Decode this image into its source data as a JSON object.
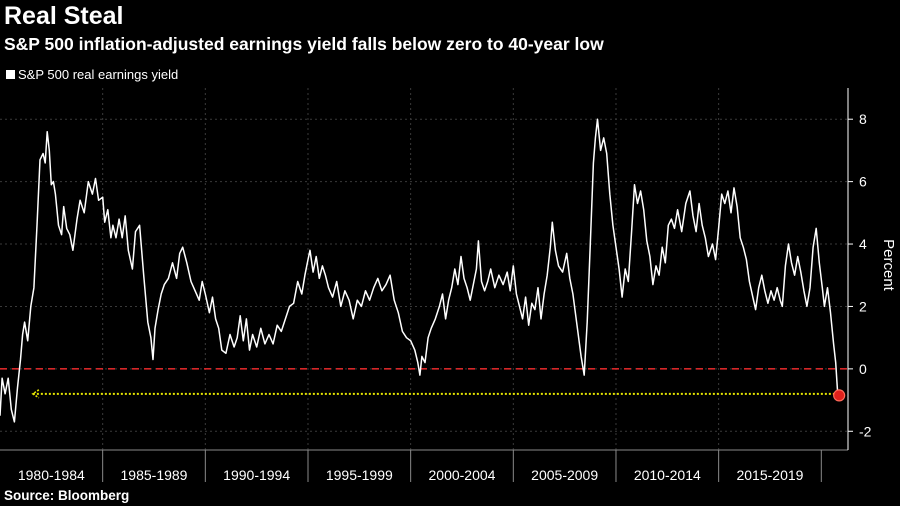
{
  "title": "Real Steal",
  "subtitle": "S&P 500 inflation-adjusted earnings yield falls below zero to 40-year low",
  "source": "Source: Bloomberg",
  "colors": {
    "background": "#000000",
    "line": "#ffffff",
    "zero_line": "#d62728",
    "reference_line": "#e6e600",
    "marker": "#e0201b"
  },
  "chart_data": {
    "type": "line",
    "legend": [
      "S&P 500 real earnings yield"
    ],
    "ylabel": "Percent",
    "ylim": [
      -2.6,
      9
    ],
    "yticks": [
      "-2",
      "0",
      "2",
      "4",
      "6",
      "8"
    ],
    "xlim": [
      1980,
      2021.3
    ],
    "x_categories": [
      "1980-1984",
      "1985-1989",
      "1990-1994",
      "1995-1999",
      "2000-2004",
      "2005-2009",
      "2010-2014",
      "2015-2019"
    ],
    "grid": true,
    "series": [
      {
        "name": "S&P 500 real earnings yield",
        "points": [
          [
            1980.0,
            -1.5
          ],
          [
            1980.1,
            -0.3
          ],
          [
            1980.25,
            -0.8
          ],
          [
            1980.4,
            -0.3
          ],
          [
            1980.55,
            -1.3
          ],
          [
            1980.7,
            -1.7
          ],
          [
            1980.85,
            -0.6
          ],
          [
            1981.0,
            0.3
          ],
          [
            1981.1,
            1.1
          ],
          [
            1981.2,
            1.5
          ],
          [
            1981.35,
            0.9
          ],
          [
            1981.5,
            2.0
          ],
          [
            1981.65,
            2.6
          ],
          [
            1981.8,
            4.6
          ],
          [
            1981.95,
            6.7
          ],
          [
            1982.1,
            6.9
          ],
          [
            1982.2,
            6.6
          ],
          [
            1982.3,
            7.6
          ],
          [
            1982.4,
            7.0
          ],
          [
            1982.5,
            5.9
          ],
          [
            1982.6,
            6.0
          ],
          [
            1982.7,
            5.6
          ],
          [
            1982.85,
            4.6
          ],
          [
            1983.0,
            4.3
          ],
          [
            1983.1,
            5.2
          ],
          [
            1983.25,
            4.5
          ],
          [
            1983.4,
            4.3
          ],
          [
            1983.55,
            3.8
          ],
          [
            1983.75,
            4.8
          ],
          [
            1983.9,
            5.4
          ],
          [
            1984.1,
            5.0
          ],
          [
            1984.3,
            6.0
          ],
          [
            1984.5,
            5.6
          ],
          [
            1984.65,
            6.1
          ],
          [
            1984.8,
            5.4
          ],
          [
            1985.0,
            5.5
          ],
          [
            1985.1,
            4.7
          ],
          [
            1985.25,
            5.1
          ],
          [
            1985.4,
            4.2
          ],
          [
            1985.5,
            4.6
          ],
          [
            1985.65,
            4.2
          ],
          [
            1985.8,
            4.8
          ],
          [
            1985.95,
            4.2
          ],
          [
            1986.1,
            4.9
          ],
          [
            1986.25,
            3.8
          ],
          [
            1986.45,
            3.2
          ],
          [
            1986.6,
            4.4
          ],
          [
            1986.8,
            4.6
          ],
          [
            1987.0,
            3.0
          ],
          [
            1987.2,
            1.5
          ],
          [
            1987.35,
            1.0
          ],
          [
            1987.45,
            0.3
          ],
          [
            1987.55,
            1.3
          ],
          [
            1987.7,
            1.9
          ],
          [
            1987.85,
            2.4
          ],
          [
            1988.0,
            2.7
          ],
          [
            1988.2,
            2.9
          ],
          [
            1988.4,
            3.4
          ],
          [
            1988.6,
            2.9
          ],
          [
            1988.75,
            3.7
          ],
          [
            1988.9,
            3.9
          ],
          [
            1989.1,
            3.4
          ],
          [
            1989.3,
            2.8
          ],
          [
            1989.5,
            2.5
          ],
          [
            1989.7,
            2.2
          ],
          [
            1989.85,
            2.8
          ],
          [
            1990.0,
            2.4
          ],
          [
            1990.2,
            1.8
          ],
          [
            1990.35,
            2.3
          ],
          [
            1990.5,
            1.6
          ],
          [
            1990.65,
            1.3
          ],
          [
            1990.8,
            0.6
          ],
          [
            1991.0,
            0.5
          ],
          [
            1991.2,
            1.1
          ],
          [
            1991.4,
            0.7
          ],
          [
            1991.55,
            1.0
          ],
          [
            1991.7,
            1.7
          ],
          [
            1991.85,
            0.9
          ],
          [
            1992.0,
            1.6
          ],
          [
            1992.15,
            0.6
          ],
          [
            1992.3,
            1.1
          ],
          [
            1992.5,
            0.7
          ],
          [
            1992.7,
            1.3
          ],
          [
            1992.9,
            0.8
          ],
          [
            1993.1,
            1.1
          ],
          [
            1993.3,
            0.8
          ],
          [
            1993.5,
            1.4
          ],
          [
            1993.7,
            1.2
          ],
          [
            1993.9,
            1.6
          ],
          [
            1994.1,
            2.0
          ],
          [
            1994.3,
            2.1
          ],
          [
            1994.5,
            2.8
          ],
          [
            1994.7,
            2.4
          ],
          [
            1994.85,
            3.0
          ],
          [
            1995.0,
            3.5
          ],
          [
            1995.1,
            3.8
          ],
          [
            1995.25,
            3.1
          ],
          [
            1995.4,
            3.6
          ],
          [
            1995.55,
            2.9
          ],
          [
            1995.7,
            3.3
          ],
          [
            1995.85,
            3.0
          ],
          [
            1996.0,
            2.6
          ],
          [
            1996.2,
            2.3
          ],
          [
            1996.4,
            2.8
          ],
          [
            1996.6,
            2.0
          ],
          [
            1996.8,
            2.5
          ],
          [
            1997.0,
            2.2
          ],
          [
            1997.2,
            1.6
          ],
          [
            1997.4,
            2.2
          ],
          [
            1997.6,
            2.0
          ],
          [
            1997.8,
            2.5
          ],
          [
            1998.0,
            2.2
          ],
          [
            1998.2,
            2.6
          ],
          [
            1998.4,
            2.9
          ],
          [
            1998.6,
            2.5
          ],
          [
            1998.8,
            2.7
          ],
          [
            1999.0,
            3.0
          ],
          [
            1999.2,
            2.2
          ],
          [
            1999.4,
            1.8
          ],
          [
            1999.6,
            1.2
          ],
          [
            1999.8,
            1.0
          ],
          [
            2000.0,
            0.9
          ],
          [
            2000.2,
            0.6
          ],
          [
            2000.35,
            0.2
          ],
          [
            2000.45,
            -0.2
          ],
          [
            2000.55,
            0.4
          ],
          [
            2000.7,
            0.2
          ],
          [
            2000.85,
            1.0
          ],
          [
            2001.0,
            1.3
          ],
          [
            2001.2,
            1.6
          ],
          [
            2001.4,
            2.0
          ],
          [
            2001.55,
            2.4
          ],
          [
            2001.7,
            1.6
          ],
          [
            2001.85,
            2.2
          ],
          [
            2002.0,
            2.6
          ],
          [
            2002.15,
            3.2
          ],
          [
            2002.3,
            2.7
          ],
          [
            2002.45,
            3.6
          ],
          [
            2002.6,
            2.9
          ],
          [
            2002.75,
            2.6
          ],
          [
            2002.9,
            2.2
          ],
          [
            2003.05,
            2.7
          ],
          [
            2003.2,
            3.2
          ],
          [
            2003.3,
            4.1
          ],
          [
            2003.45,
            2.8
          ],
          [
            2003.6,
            2.5
          ],
          [
            2003.75,
            2.8
          ],
          [
            2003.9,
            3.2
          ],
          [
            2004.1,
            2.6
          ],
          [
            2004.3,
            3.0
          ],
          [
            2004.5,
            2.7
          ],
          [
            2004.7,
            3.1
          ],
          [
            2004.85,
            2.5
          ],
          [
            2005.0,
            3.3
          ],
          [
            2005.15,
            2.4
          ],
          [
            2005.3,
            2.0
          ],
          [
            2005.45,
            1.6
          ],
          [
            2005.6,
            2.3
          ],
          [
            2005.75,
            1.4
          ],
          [
            2005.9,
            2.1
          ],
          [
            2006.05,
            1.9
          ],
          [
            2006.2,
            2.6
          ],
          [
            2006.35,
            1.6
          ],
          [
            2006.5,
            2.4
          ],
          [
            2006.65,
            3.0
          ],
          [
            2006.8,
            3.9
          ],
          [
            2006.9,
            4.7
          ],
          [
            2007.05,
            3.8
          ],
          [
            2007.2,
            3.3
          ],
          [
            2007.4,
            3.1
          ],
          [
            2007.6,
            3.7
          ],
          [
            2007.75,
            2.9
          ],
          [
            2007.9,
            2.4
          ],
          [
            2008.1,
            1.4
          ],
          [
            2008.3,
            0.4
          ],
          [
            2008.45,
            -0.2
          ],
          [
            2008.6,
            1.5
          ],
          [
            2008.75,
            4.0
          ],
          [
            2008.9,
            6.6
          ],
          [
            2009.0,
            7.4
          ],
          [
            2009.1,
            8.0
          ],
          [
            2009.25,
            7.0
          ],
          [
            2009.4,
            7.4
          ],
          [
            2009.55,
            6.9
          ],
          [
            2009.7,
            5.6
          ],
          [
            2009.85,
            4.6
          ],
          [
            2010.0,
            3.9
          ],
          [
            2010.15,
            3.2
          ],
          [
            2010.3,
            2.3
          ],
          [
            2010.45,
            3.2
          ],
          [
            2010.6,
            2.8
          ],
          [
            2010.75,
            4.3
          ],
          [
            2010.9,
            5.9
          ],
          [
            2011.05,
            5.3
          ],
          [
            2011.2,
            5.7
          ],
          [
            2011.35,
            5.1
          ],
          [
            2011.5,
            4.1
          ],
          [
            2011.65,
            3.6
          ],
          [
            2011.8,
            2.7
          ],
          [
            2011.95,
            3.3
          ],
          [
            2012.1,
            3.0
          ],
          [
            2012.25,
            3.9
          ],
          [
            2012.4,
            3.4
          ],
          [
            2012.55,
            4.6
          ],
          [
            2012.7,
            4.8
          ],
          [
            2012.85,
            4.5
          ],
          [
            2013.0,
            5.1
          ],
          [
            2013.2,
            4.4
          ],
          [
            2013.4,
            5.3
          ],
          [
            2013.6,
            5.7
          ],
          [
            2013.75,
            4.9
          ],
          [
            2013.9,
            4.4
          ],
          [
            2014.05,
            5.3
          ],
          [
            2014.2,
            4.6
          ],
          [
            2014.35,
            4.2
          ],
          [
            2014.5,
            3.6
          ],
          [
            2014.7,
            4.0
          ],
          [
            2014.85,
            3.5
          ],
          [
            2015.0,
            4.5
          ],
          [
            2015.15,
            5.6
          ],
          [
            2015.3,
            5.3
          ],
          [
            2015.45,
            5.7
          ],
          [
            2015.6,
            5.0
          ],
          [
            2015.75,
            5.8
          ],
          [
            2015.9,
            5.2
          ],
          [
            2016.05,
            4.2
          ],
          [
            2016.2,
            3.9
          ],
          [
            2016.35,
            3.5
          ],
          [
            2016.5,
            2.8
          ],
          [
            2016.7,
            2.2
          ],
          [
            2016.8,
            1.9
          ],
          [
            2016.95,
            2.6
          ],
          [
            2017.1,
            3.0
          ],
          [
            2017.25,
            2.5
          ],
          [
            2017.4,
            2.1
          ],
          [
            2017.55,
            2.5
          ],
          [
            2017.7,
            2.2
          ],
          [
            2017.85,
            2.6
          ],
          [
            2018.0,
            2.2
          ],
          [
            2018.1,
            2.0
          ],
          [
            2018.25,
            3.3
          ],
          [
            2018.4,
            4.0
          ],
          [
            2018.55,
            3.4
          ],
          [
            2018.7,
            3.0
          ],
          [
            2018.85,
            3.6
          ],
          [
            2019.0,
            3.1
          ],
          [
            2019.15,
            2.5
          ],
          [
            2019.3,
            2.0
          ],
          [
            2019.45,
            2.6
          ],
          [
            2019.6,
            3.9
          ],
          [
            2019.75,
            4.5
          ],
          [
            2019.9,
            3.4
          ],
          [
            2020.05,
            2.6
          ],
          [
            2020.15,
            2.0
          ],
          [
            2020.3,
            2.6
          ],
          [
            2020.45,
            1.8
          ],
          [
            2020.6,
            0.8
          ],
          [
            2020.7,
            0.2
          ],
          [
            2020.8,
            -0.8
          ],
          [
            2020.87,
            -0.85
          ]
        ]
      }
    ],
    "reference_lines": [
      {
        "y": 0,
        "style": "dashed",
        "color": "#d62728"
      },
      {
        "y": -0.8,
        "style": "dotted",
        "color": "#e6e600",
        "x_range": [
          1981.6,
          2020.85
        ]
      }
    ],
    "marker": {
      "x": 2020.87,
      "y": -0.85
    }
  }
}
